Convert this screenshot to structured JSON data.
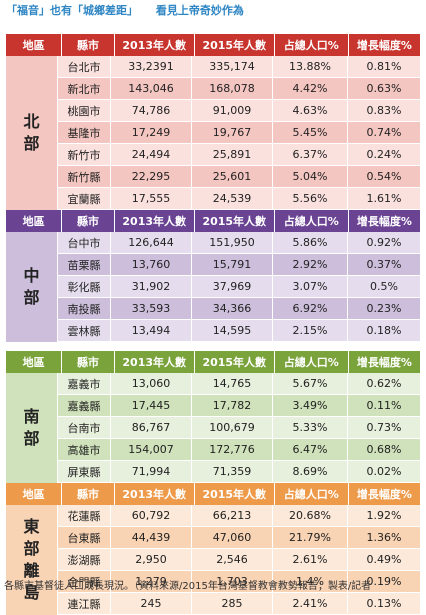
{
  "headline": {
    "part1": "「福音」也有「城鄉差距」",
    "part2": "看見上帝奇妙作為"
  },
  "headers": {
    "region": "地區",
    "county": "縣市",
    "y2013": "2013年人數",
    "y2015": "2015年人數",
    "share": "占總人口%",
    "growth": "增長幅度%"
  },
  "sections": [
    {
      "region": "北部",
      "header_color": "#c8352f",
      "row_light": "#fbe1de",
      "row_dark": "#f4c6c1",
      "rows": [
        {
          "county": "台北市",
          "y2013": "33,2391",
          "y2015": "335,174",
          "share": "13.88%",
          "growth": "0.81%"
        },
        {
          "county": "新北市",
          "y2013": "143,046",
          "y2015": "168,078",
          "share": "4.42%",
          "growth": "0.63%"
        },
        {
          "county": "桃園市",
          "y2013": "74,786",
          "y2015": "91,009",
          "share": "4.63%",
          "growth": "0.83%"
        },
        {
          "county": "基隆市",
          "y2013": "17,249",
          "y2015": "19,767",
          "share": "5.45%",
          "growth": "0.74%"
        },
        {
          "county": "新竹市",
          "y2013": "24,494",
          "y2015": "25,891",
          "share": "6.37%",
          "growth": "0.24%"
        },
        {
          "county": "新竹縣",
          "y2013": "22,295",
          "y2015": "25,601",
          "share": "5.04%",
          "growth": "0.54%"
        },
        {
          "county": "宜蘭縣",
          "y2013": "17,555",
          "y2015": "24,539",
          "share": "5.56%",
          "growth": "1.61%"
        }
      ]
    },
    {
      "region": "中部",
      "header_color": "#6b4393",
      "row_light": "#e5dded",
      "row_dark": "#cdbfdc",
      "rows": [
        {
          "county": "台中市",
          "y2013": "126,644",
          "y2015": "151,950",
          "share": "5.86%",
          "growth": "0.92%"
        },
        {
          "county": "苗栗縣",
          "y2013": "13,760",
          "y2015": "15,791",
          "share": "2.92%",
          "growth": "0.37%"
        },
        {
          "county": "彰化縣",
          "y2013": "31,902",
          "y2015": "37,969",
          "share": "3.07%",
          "growth": "0.5%"
        },
        {
          "county": "南投縣",
          "y2013": "33,593",
          "y2015": "34,366",
          "share": "6.92%",
          "growth": "0.23%"
        },
        {
          "county": "雲林縣",
          "y2013": "13,494",
          "y2015": "14,595",
          "share": "2.15%",
          "growth": "0.18%"
        }
      ]
    },
    {
      "region": "南部",
      "header_color": "#7aa33c",
      "row_light": "#e7f0dc",
      "row_dark": "#d0e2bb",
      "rows": [
        {
          "county": "嘉義市",
          "y2013": "13,060",
          "y2015": "14,765",
          "share": "5.67%",
          "growth": "0.62%"
        },
        {
          "county": "嘉義縣",
          "y2013": "17,445",
          "y2015": "17,782",
          "share": "3.49%",
          "growth": "0.11%"
        },
        {
          "county": "台南市",
          "y2013": "86,767",
          "y2015": "100,679",
          "share": "5.33%",
          "growth": "0.73%"
        },
        {
          "county": "高雄市",
          "y2013": "154,007",
          "y2015": "172,776",
          "share": "6.47%",
          "growth": "0.68%"
        },
        {
          "county": "屏東縣",
          "y2013": "71,994",
          "y2015": "71,359",
          "share": "8.69%",
          "growth": "0.02%"
        }
      ]
    },
    {
      "region": "東部離島",
      "header_color": "#ee9a4b",
      "row_light": "#fce9d9",
      "row_dark": "#f8d3b4",
      "rows": [
        {
          "county": "花蓮縣",
          "y2013": "60,792",
          "y2015": "66,213",
          "share": "20.68%",
          "growth": "1.92%"
        },
        {
          "county": "台東縣",
          "y2013": "44,439",
          "y2015": "47,060",
          "share": "21.79%",
          "growth": "1.36%"
        },
        {
          "county": "澎湖縣",
          "y2013": "2,950",
          "y2015": "2,546",
          "share": "2.61%",
          "growth": "0.49%"
        },
        {
          "county": "金門縣",
          "y2013": "1,279",
          "y2015": "1,703",
          "share": "1.4%",
          "growth": "0.19%"
        },
        {
          "county": "連江縣",
          "y2013": "245",
          "y2015": "285",
          "share": "2.41%",
          "growth": "0.13%"
        }
      ]
    }
  ],
  "footer": "各縣市基督徒人口成長現況。（資料來源/2015年台灣基督教會教勢報告；製表/記者"
}
